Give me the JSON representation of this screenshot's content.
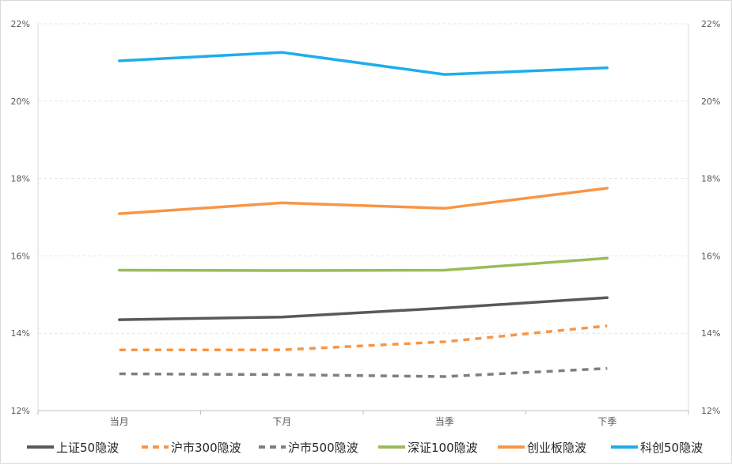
{
  "chart_data": {
    "type": "line",
    "title": "",
    "xlabel": "",
    "ylabel": "",
    "categories": [
      "当月",
      "下月",
      "当季",
      "下季"
    ],
    "ylim": [
      0.12,
      0.22
    ],
    "y_ticks": [
      0.12,
      0.14,
      0.16,
      0.18,
      0.2,
      0.22
    ],
    "y_tick_labels": [
      "12%",
      "14%",
      "16%",
      "18%",
      "20%",
      "22%"
    ],
    "secondary_y_axis": true,
    "grid": {
      "horizontal": true,
      "style": "dashed"
    },
    "legend": {
      "position": "bottom"
    },
    "series": [
      {
        "name": "上证50隐波",
        "values": [
          0.1435,
          0.1442,
          0.1465,
          0.1492
        ],
        "color": "#595959",
        "dash": "solid"
      },
      {
        "name": "沪市300隐波",
        "values": [
          0.1357,
          0.1357,
          0.1378,
          0.1419
        ],
        "color": "#f79646",
        "dash": "dashed"
      },
      {
        "name": "沪市500隐波",
        "values": [
          0.1295,
          0.1293,
          0.1288,
          0.1309
        ],
        "color": "#7f7f7f",
        "dash": "dashed"
      },
      {
        "name": "深证100隐波",
        "values": [
          0.1563,
          0.1562,
          0.1563,
          0.1594
        ],
        "color": "#9bbb59",
        "dash": "solid"
      },
      {
        "name": "创业板隐波",
        "values": [
          0.1709,
          0.1737,
          0.1723,
          0.1775
        ],
        "color": "#f79646",
        "dash": "solid"
      },
      {
        "name": "科创50隐波",
        "values": [
          0.2104,
          0.2126,
          0.2069,
          0.2086
        ],
        "color": "#1eaee9",
        "dash": "solid"
      }
    ]
  }
}
